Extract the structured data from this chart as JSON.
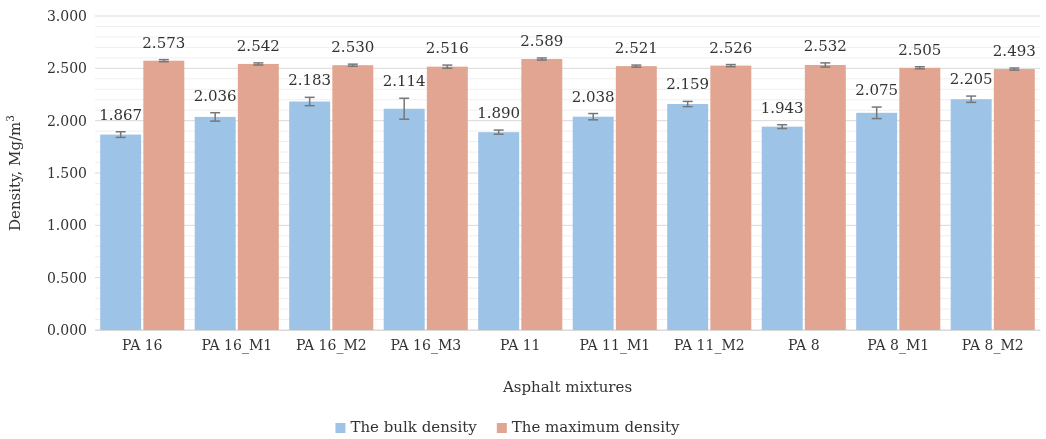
{
  "chart_data": {
    "type": "bar",
    "xlabel": "Asphalt mixtures",
    "ylabel": "Density, Mg/m$^{3}$",
    "categories": [
      "PA 16",
      "PA 16_M1",
      "PA 16_M2",
      "PA 16_M3",
      "PA 11",
      "PA 11_M1",
      "PA 11_M2",
      "PA 8",
      "PA 8_M1",
      "PA 8_M2"
    ],
    "series": [
      {
        "name": "The bulk density",
        "color": "#9dc3e6",
        "values": [
          1.867,
          2.036,
          2.183,
          2.114,
          1.89,
          2.038,
          2.159,
          1.943,
          2.075,
          2.205
        ],
        "value_labels": [
          "1.867",
          "2.036",
          "2.183",
          "2.114",
          "1.890",
          "2.038",
          "2.159",
          "1.943",
          "2.075",
          "2.205"
        ],
        "errors": [
          0.027,
          0.04,
          0.04,
          0.1,
          0.02,
          0.03,
          0.025,
          0.018,
          0.055,
          0.03
        ]
      },
      {
        "name": "The maximum density",
        "color": "#e2a591",
        "values": [
          2.573,
          2.542,
          2.53,
          2.516,
          2.589,
          2.521,
          2.526,
          2.532,
          2.505,
          2.493
        ],
        "value_labels": [
          "2.573",
          "2.542",
          "2.530",
          "2.516",
          "2.589",
          "2.521",
          "2.526",
          "2.532",
          "2.505",
          "2.493"
        ],
        "errors": [
          0.01,
          0.01,
          0.01,
          0.015,
          0.01,
          0.01,
          0.01,
          0.02,
          0.01,
          0.01
        ]
      }
    ],
    "ylim": [
      0,
      3
    ],
    "yticks": [
      {
        "value": 0,
        "label": "0.000"
      },
      {
        "value": 0.1,
        "label": null
      },
      {
        "value": 0.2,
        "label": null
      },
      {
        "value": 0.3,
        "label": null
      },
      {
        "value": 0.4,
        "label": null
      },
      {
        "value": 0.5,
        "label": "0.500"
      },
      {
        "value": 0.6,
        "label": null
      },
      {
        "value": 0.7,
        "label": null
      },
      {
        "value": 0.8,
        "label": null
      },
      {
        "value": 0.9,
        "label": null
      },
      {
        "value": 1,
        "label": "1.000"
      },
      {
        "value": 1.1,
        "label": null
      },
      {
        "value": 1.2,
        "label": null
      },
      {
        "value": 1.3,
        "label": null
      },
      {
        "value": 1.4,
        "label": null
      },
      {
        "value": 1.5,
        "label": "1.500"
      },
      {
        "value": 1.6,
        "label": null
      },
      {
        "value": 1.7,
        "label": null
      },
      {
        "value": 1.8,
        "label": null
      },
      {
        "value": 1.9,
        "label": null
      },
      {
        "value": 2,
        "label": "2.000"
      },
      {
        "value": 2.1,
        "label": null
      },
      {
        "value": 2.2,
        "label": null
      },
      {
        "value": 2.3,
        "label": null
      },
      {
        "value": 2.4,
        "label": null
      },
      {
        "value": 2.5,
        "label": "2.500"
      },
      {
        "value": 2.6,
        "label": null
      },
      {
        "value": 2.7,
        "label": null
      },
      {
        "value": 2.8,
        "label": null
      },
      {
        "value": 2.9,
        "label": null
      },
      {
        "value": 3,
        "label": "3.000"
      }
    ],
    "grid": "y",
    "legend": "bottom"
  }
}
